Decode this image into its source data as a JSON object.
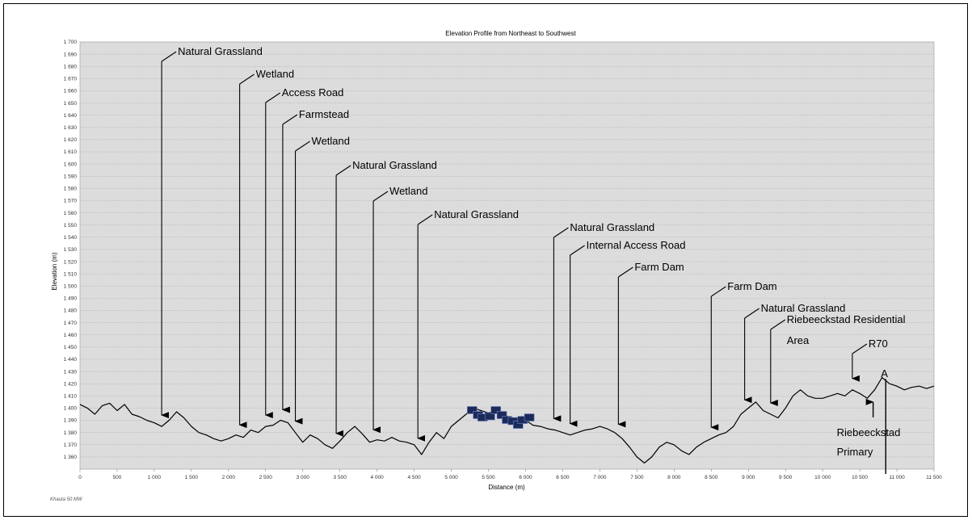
{
  "chart_data": {
    "type": "line",
    "title": "Elevation Profile from Northeast to Southwest",
    "xlabel": "Distance (m)",
    "ylabel": "Elevation (m)",
    "xlim": [
      0,
      11500
    ],
    "ylim": [
      1350,
      1700
    ],
    "x_ticks": [
      0,
      500,
      1000,
      1500,
      2000,
      2500,
      3000,
      3500,
      4000,
      4500,
      5000,
      5500,
      6000,
      6500,
      7000,
      7500,
      8000,
      8500,
      9000,
      9500,
      10000,
      10500,
      11000,
      11500
    ],
    "x_tick_labels": [
      "0",
      "500",
      "1 000",
      "1 500",
      "2 000",
      "2 500",
      "3 000",
      "3 500",
      "4 000",
      "4 500",
      "5 000",
      "5 500",
      "6 000",
      "6 500",
      "7 000",
      "7 500",
      "8 000",
      "8 500",
      "9 000",
      "9 500",
      "10 000",
      "10 500",
      "11 000",
      "11 500"
    ],
    "y_ticks": [
      1360,
      1370,
      1380,
      1390,
      1400,
      1410,
      1420,
      1430,
      1440,
      1450,
      1460,
      1470,
      1480,
      1490,
      1500,
      1510,
      1520,
      1530,
      1540,
      1550,
      1560,
      1570,
      1580,
      1590,
      1600,
      1610,
      1620,
      1630,
      1640,
      1650,
      1660,
      1670,
      1680,
      1690,
      1700
    ],
    "y_tick_labels": [
      "1 360",
      "1 370",
      "1 380",
      "1 390",
      "1 400",
      "1 410",
      "1 420",
      "1 430",
      "1 440",
      "1 450",
      "1 460",
      "1 470",
      "1 480",
      "1 490",
      "1 500",
      "1 510",
      "1 520",
      "1 530",
      "1 540",
      "1 550",
      "1 560",
      "1 570",
      "1 580",
      "1 590",
      "1 600",
      "1 610",
      "1 620",
      "1 630",
      "1 640",
      "1 650",
      "1 660",
      "1 670",
      "1 680",
      "1 690",
      "1 700"
    ],
    "grid": true,
    "series": [
      {
        "x": [
          0,
          100,
          200,
          300,
          400,
          500,
          600,
          700,
          800,
          900,
          1000,
          1100,
          1200,
          1300,
          1400,
          1500,
          1600,
          1700,
          1800,
          1900,
          2000,
          2100,
          2200,
          2300,
          2400,
          2500,
          2600,
          2700,
          2800,
          2900,
          3000,
          3100,
          3200,
          3300,
          3400,
          3500,
          3600,
          3700,
          3800,
          3900,
          4000,
          4100,
          4200,
          4300,
          4400,
          4500,
          4600,
          4700,
          4800,
          4900,
          5000,
          5100,
          5200,
          5300,
          5400,
          5500,
          5600,
          5700,
          5800,
          5900,
          6000,
          6100,
          6200,
          6300,
          6400,
          6500,
          6600,
          6700,
          6800,
          6900,
          7000,
          7100,
          7200,
          7300,
          7400,
          7500,
          7600,
          7700,
          7800,
          7900,
          8000,
          8100,
          8200,
          8300,
          8400,
          8500,
          8600,
          8700,
          8800,
          8900,
          9000,
          9100,
          9200,
          9300,
          9400,
          9500,
          9600,
          9700,
          9800,
          9900,
          10000,
          10100,
          10200,
          10300,
          10400,
          10500,
          10600,
          10700,
          10800,
          10900,
          11000,
          11100,
          11200,
          11300,
          11400,
          11500
        ],
        "values": [
          1403,
          1400,
          1395,
          1402,
          1404,
          1398,
          1403,
          1395,
          1393,
          1390,
          1388,
          1385,
          1390,
          1397,
          1392,
          1385,
          1380,
          1378,
          1375,
          1373,
          1375,
          1378,
          1376,
          1382,
          1380,
          1385,
          1386,
          1390,
          1388,
          1380,
          1372,
          1378,
          1375,
          1370,
          1367,
          1373,
          1380,
          1385,
          1379,
          1372,
          1374,
          1373,
          1376,
          1373,
          1372,
          1370,
          1362,
          1372,
          1380,
          1375,
          1385,
          1390,
          1395,
          1400,
          1398,
          1396,
          1398,
          1395,
          1392,
          1388,
          1390,
          1386,
          1385,
          1383,
          1382,
          1380,
          1378,
          1380,
          1382,
          1383,
          1385,
          1383,
          1380,
          1375,
          1368,
          1360,
          1355,
          1360,
          1368,
          1372,
          1370,
          1365,
          1362,
          1368,
          1372,
          1375,
          1378,
          1380,
          1385,
          1395,
          1400,
          1405,
          1398,
          1395,
          1392,
          1400,
          1410,
          1415,
          1410,
          1408,
          1408,
          1410,
          1412,
          1410,
          1415,
          1412,
          1408,
          1415,
          1425,
          1420,
          1418,
          1415,
          1417,
          1418,
          1416,
          1418
        ]
      }
    ],
    "annotations": [
      {
        "lines": [
          "Natural Grassland"
        ],
        "x": 1100
      },
      {
        "lines": [
          "Wetland"
        ],
        "x": 2150
      },
      {
        "lines": [
          "Access Road"
        ],
        "x": 2500
      },
      {
        "lines": [
          "Farmstead"
        ],
        "x": 2730
      },
      {
        "lines": [
          "Wetland"
        ],
        "x": 2900
      },
      {
        "lines": [
          "Natural Grassland"
        ],
        "x": 3450
      },
      {
        "lines": [
          "Wetland"
        ],
        "x": 3950
      },
      {
        "lines": [
          "Natural Grassland"
        ],
        "x": 4550
      },
      {
        "lines": [
          "Natural Grassland"
        ],
        "x": 6380
      },
      {
        "lines": [
          "Internal Access Road"
        ],
        "x": 6600
      },
      {
        "lines": [
          "Farm Dam"
        ],
        "x": 7250
      },
      {
        "lines": [
          "Farm Dam"
        ],
        "x": 8500
      },
      {
        "lines": [
          "Natural Grassland"
        ],
        "x": 8950
      },
      {
        "lines": [
          "Riebeeckstad Residential",
          "Area"
        ],
        "x": 9300
      },
      {
        "lines": [
          "R70"
        ],
        "x": 10400
      },
      {
        "lines": [
          "Riebeeckstad",
          "Primary"
        ],
        "x": 10680
      },
      {
        "lines": [
          "A"
        ],
        "x": 10850
      }
    ]
  },
  "footer": "Khauta 50 MW"
}
